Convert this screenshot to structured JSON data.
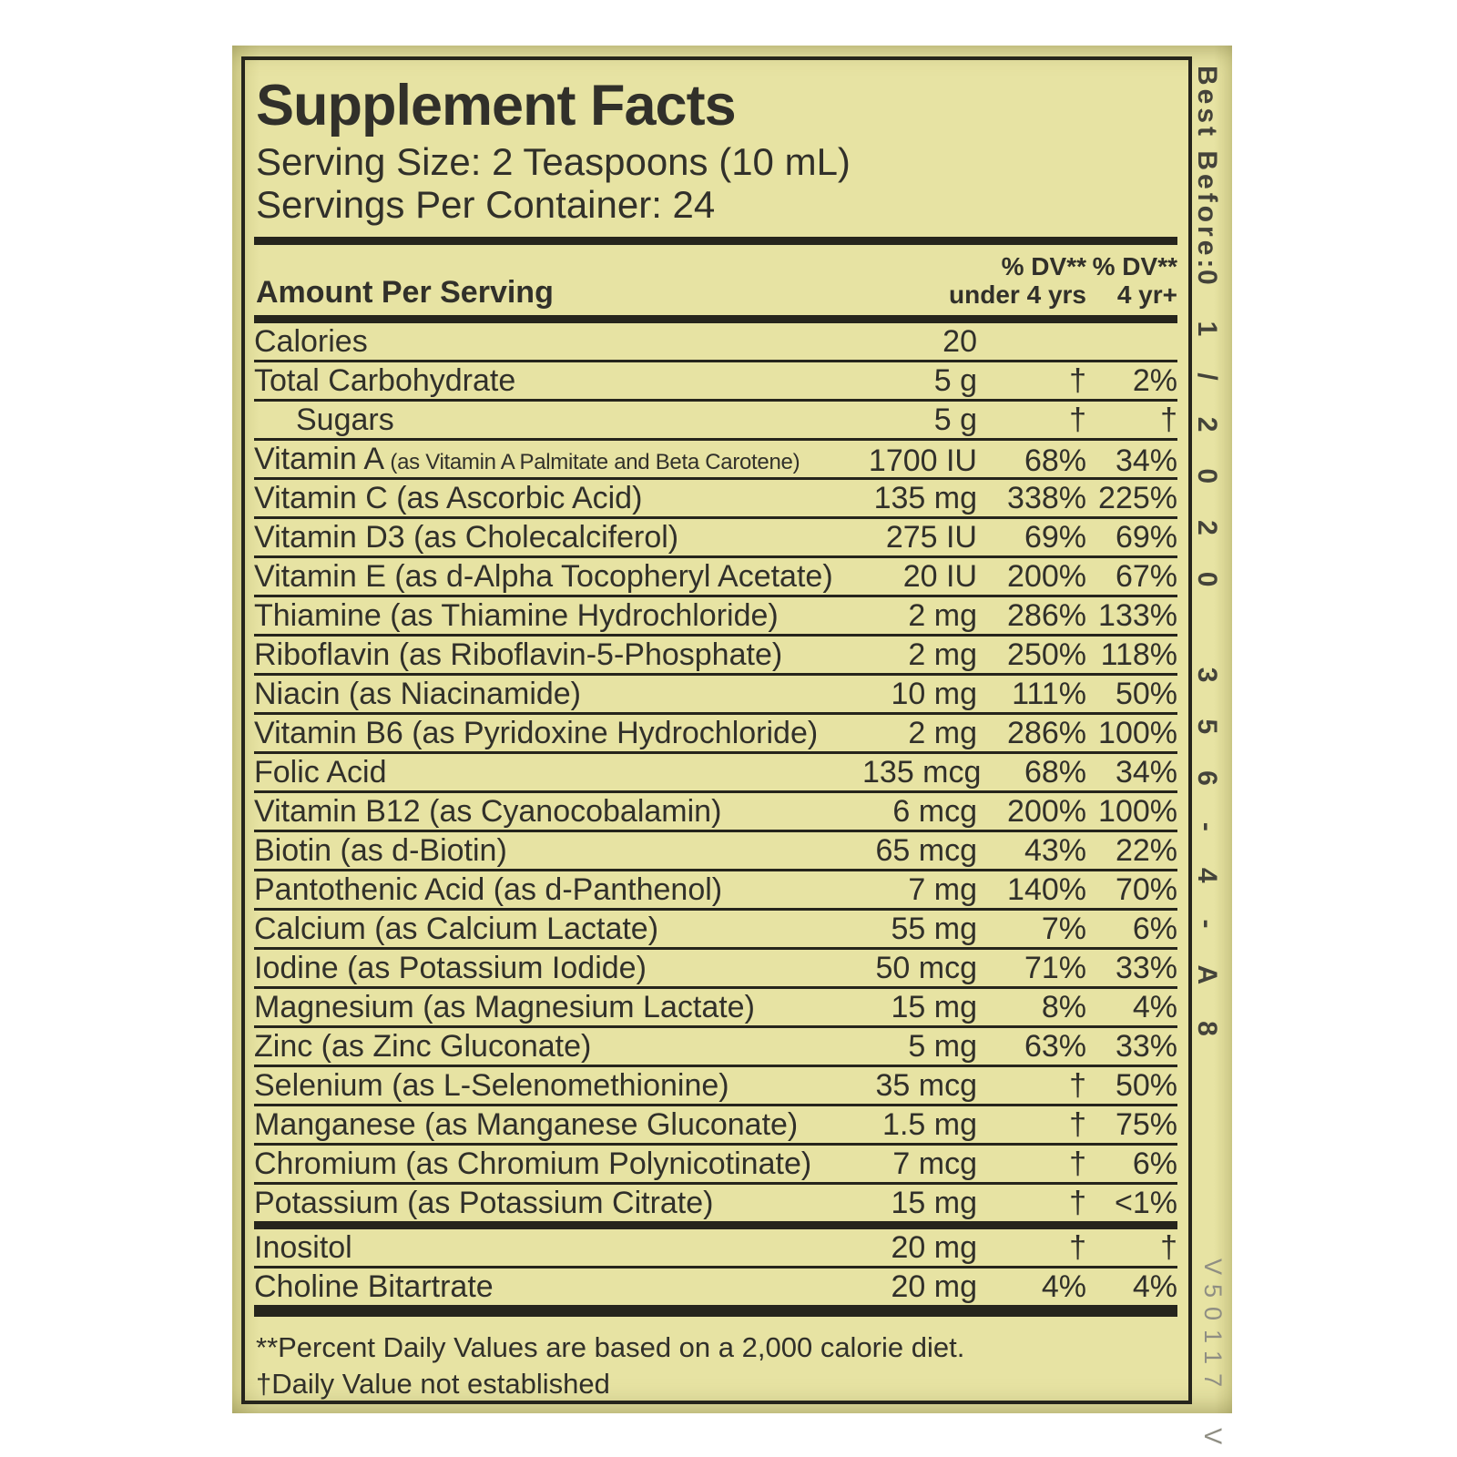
{
  "colors": {
    "label_background": "#e7e3a3",
    "ink": "#31302a",
    "rule_black": "#26251c",
    "lot_text": "#44433a",
    "print_code_gray": "#8f8e83",
    "page_background": "#ffffff"
  },
  "label": {
    "title": "Supplement Facts",
    "serving_size": "Serving Size: 2 Teaspoons (10 mL)",
    "servings_per_container": "Servings Per Container: 24",
    "header": {
      "amount_per_serving": "Amount Per Serving",
      "dv1_line1": "% DV**",
      "dv1_line2": "under 4 yrs",
      "dv2_line1": "% DV**",
      "dv2_line2": "4 yr+"
    },
    "rows": [
      {
        "name": "Calories",
        "amount": "20",
        "dv1": "",
        "dv2": ""
      },
      {
        "name": "Total Carbohydrate",
        "amount": "5 g",
        "dv1": "†",
        "dv2": "2%"
      },
      {
        "name": "Sugars",
        "amount": "5 g",
        "dv1": "†",
        "dv2": "†",
        "indent": true
      },
      {
        "name": "Vitamin A",
        "sub": "(as Vitamin A Palmitate and Beta Carotene)",
        "amount": "1700 IU",
        "dv1": "68%",
        "dv2": "34%"
      },
      {
        "name": "Vitamin C (as Ascorbic Acid)",
        "amount": "135 mg",
        "dv1": "338%",
        "dv2": "225%"
      },
      {
        "name": "Vitamin D3 (as Cholecalciferol)",
        "amount": "275 IU",
        "dv1": "69%",
        "dv2": "69%"
      },
      {
        "name": "Vitamin E (as d-Alpha Tocopheryl Acetate)",
        "amount": "20 IU",
        "dv1": "200%",
        "dv2": "67%"
      },
      {
        "name": "Thiamine (as Thiamine Hydrochloride)",
        "amount": "2 mg",
        "dv1": "286%",
        "dv2": "133%"
      },
      {
        "name": "Riboflavin (as Riboflavin-5-Phosphate)",
        "amount": "2 mg",
        "dv1": "250%",
        "dv2": "118%"
      },
      {
        "name": "Niacin (as Niacinamide)",
        "amount": "10 mg",
        "dv1": "111%",
        "dv2": "50%"
      },
      {
        "name": "Vitamin B6 (as Pyridoxine Hydrochloride)",
        "amount": "2 mg",
        "dv1": "286%",
        "dv2": "100%"
      },
      {
        "name": "Folic Acid",
        "amount": "135 mcg",
        "dv1": "68%",
        "dv2": "34%"
      },
      {
        "name": "Vitamin B12 (as Cyanocobalamin)",
        "amount": "6 mcg",
        "dv1": "200%",
        "dv2": "100%"
      },
      {
        "name": "Biotin (as d-Biotin)",
        "amount": "65 mcg",
        "dv1": "43%",
        "dv2": "22%"
      },
      {
        "name": "Pantothenic Acid (as d-Panthenol)",
        "amount": "7 mg",
        "dv1": "140%",
        "dv2": "70%"
      },
      {
        "name": "Calcium (as Calcium Lactate)",
        "amount": "55 mg",
        "dv1": "7%",
        "dv2": "6%"
      },
      {
        "name": "Iodine (as Potassium Iodide)",
        "amount": "50 mcg",
        "dv1": "71%",
        "dv2": "33%"
      },
      {
        "name": "Magnesium (as Magnesium Lactate)",
        "amount": "15 mg",
        "dv1": "8%",
        "dv2": "4%"
      },
      {
        "name": "Zinc (as Zinc Gluconate)",
        "amount": "5 mg",
        "dv1": "63%",
        "dv2": "33%"
      },
      {
        "name": "Selenium (as L-Selenomethionine)",
        "amount": "35 mcg",
        "dv1": "†",
        "dv2": "50%"
      },
      {
        "name": "Manganese (as Manganese Gluconate)",
        "amount": "1.5 mg",
        "dv1": "†",
        "dv2": "75%"
      },
      {
        "name": "Chromium (as Chromium Polynicotinate)",
        "amount": "7 mcg",
        "dv1": "†",
        "dv2": "6%"
      },
      {
        "name": "Potassium (as Potassium Citrate)",
        "amount": "15 mg",
        "dv1": "†",
        "dv2": "<1%",
        "after": "thick"
      },
      {
        "name": "Inositol",
        "amount": "20 mg",
        "dv1": "†",
        "dv2": "†"
      },
      {
        "name": "Choline Bitartrate",
        "amount": "20 mg",
        "dv1": "4%",
        "dv2": "4%",
        "after": "xthick"
      }
    ],
    "footnotes": [
      "**Percent Daily Values are based on a 2,000 calorie diet.",
      "†Daily Value not established"
    ]
  },
  "side_text": {
    "best_before": "Best Before:",
    "lot_code": "01/2020 356-4-A8",
    "print_code": "V50117  V"
  }
}
